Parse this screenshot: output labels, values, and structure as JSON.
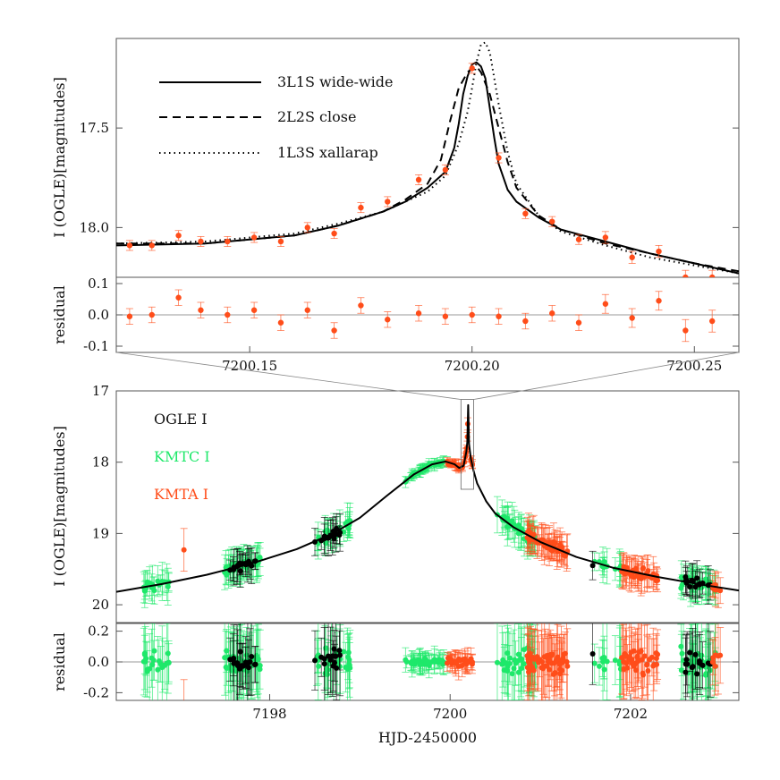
{
  "chart_data": [
    {
      "type": "line",
      "panel": "top-zoom",
      "ylabel": "I (OGLE)[magnitudes]",
      "xlim": [
        7200.12,
        7200.26
      ],
      "ylim": [
        18.25,
        17.05
      ],
      "yticks": [
        17.5,
        18.0
      ],
      "ytick_labels": [
        "17.5",
        "18.0"
      ],
      "legend_position": "top-left",
      "series": [
        {
          "name": "3L1S wide-wide",
          "style": "solid",
          "x": [
            7200.12,
            7200.14,
            7200.16,
            7200.17,
            7200.18,
            7200.185,
            7200.19,
            7200.194,
            7200.196,
            7200.197,
            7200.198,
            7200.199,
            7200.2,
            7200.201,
            7200.202,
            7200.203,
            7200.204,
            7200.205,
            7200.206,
            7200.208,
            7200.21,
            7200.215,
            7200.22,
            7200.23,
            7200.24,
            7200.25,
            7200.26
          ],
          "y": [
            18.09,
            18.08,
            18.04,
            17.99,
            17.92,
            17.87,
            17.8,
            17.72,
            17.6,
            17.48,
            17.33,
            17.24,
            17.18,
            17.17,
            17.19,
            17.25,
            17.4,
            17.55,
            17.68,
            17.81,
            17.87,
            17.95,
            18.01,
            18.07,
            18.13,
            18.18,
            18.23
          ]
        },
        {
          "name": "2L2S close",
          "style": "dashed",
          "x": [
            7200.12,
            7200.14,
            7200.16,
            7200.17,
            7200.18,
            7200.185,
            7200.19,
            7200.193,
            7200.195,
            7200.197,
            7200.199,
            7200.2,
            7200.201,
            7200.202,
            7200.204,
            7200.206,
            7200.208,
            7200.21,
            7200.215,
            7200.22,
            7200.23,
            7200.24,
            7200.25,
            7200.26
          ],
          "y": [
            18.08,
            18.08,
            18.04,
            17.99,
            17.92,
            17.86,
            17.78,
            17.66,
            17.47,
            17.3,
            17.22,
            17.2,
            17.19,
            17.22,
            17.33,
            17.5,
            17.67,
            17.8,
            17.94,
            18.01,
            18.08,
            18.13,
            18.18,
            18.22
          ]
        },
        {
          "name": "1L3S xallarap",
          "style": "dotted",
          "x": [
            7200.12,
            7200.14,
            7200.16,
            7200.17,
            7200.18,
            7200.19,
            7200.194,
            7200.197,
            7200.199,
            7200.2,
            7200.201,
            7200.202,
            7200.203,
            7200.204,
            7200.206,
            7200.208,
            7200.21,
            7200.215,
            7200.22,
            7200.23,
            7200.24,
            7200.25,
            7200.26
          ],
          "y": [
            18.08,
            18.07,
            18.03,
            17.98,
            17.92,
            17.82,
            17.74,
            17.58,
            17.42,
            17.3,
            17.17,
            17.08,
            17.07,
            17.12,
            17.38,
            17.62,
            17.78,
            17.94,
            18.02,
            18.09,
            18.15,
            18.19,
            18.23
          ]
        }
      ],
      "points": {
        "name": "KMTA I",
        "color": "#ff4d1a",
        "x": [
          7200.123,
          7200.128,
          7200.134,
          7200.139,
          7200.145,
          7200.151,
          7200.157,
          7200.163,
          7200.169,
          7200.175,
          7200.181,
          7200.188,
          7200.194,
          7200.2,
          7200.206,
          7200.212,
          7200.218,
          7200.224,
          7200.23,
          7200.236,
          7200.242,
          7200.248,
          7200.254
        ],
        "y": [
          18.09,
          18.09,
          18.04,
          18.07,
          18.07,
          18.05,
          18.07,
          18.0,
          18.03,
          17.9,
          17.87,
          17.76,
          17.71,
          17.2,
          17.65,
          17.93,
          17.97,
          18.06,
          18.05,
          18.15,
          18.12,
          18.25,
          18.25
        ],
        "err": [
          0.025,
          0.025,
          0.025,
          0.025,
          0.025,
          0.025,
          0.025,
          0.025,
          0.025,
          0.025,
          0.025,
          0.025,
          0.025,
          0.025,
          0.025,
          0.025,
          0.025,
          0.025,
          0.03,
          0.03,
          0.03,
          0.035,
          0.035
        ]
      }
    },
    {
      "type": "scatter",
      "panel": "top-zoom-residual",
      "ylabel": "residual",
      "xlim": [
        7200.12,
        7200.26
      ],
      "ylim": [
        -0.12,
        0.12
      ],
      "yticks": [
        0.1,
        0.0,
        -0.1
      ],
      "ytick_labels": [
        "0.1",
        "0.0",
        "-0.1"
      ],
      "xticks": [
        7200.15,
        7200.2,
        7200.25
      ],
      "xtick_labels": [
        "7200.15",
        "7200.20",
        "7200.25"
      ],
      "points": {
        "name": "KMTA I",
        "color": "#ff4d1a",
        "x": [
          7200.123,
          7200.128,
          7200.134,
          7200.139,
          7200.145,
          7200.151,
          7200.157,
          7200.163,
          7200.169,
          7200.175,
          7200.181,
          7200.188,
          7200.194,
          7200.2,
          7200.206,
          7200.212,
          7200.218,
          7200.224,
          7200.23,
          7200.236,
          7200.242,
          7200.248,
          7200.254
        ],
        "y": [
          -0.005,
          0.0,
          0.055,
          0.015,
          0.0,
          0.015,
          -0.025,
          0.015,
          -0.05,
          0.03,
          -0.015,
          0.005,
          -0.005,
          0.0,
          -0.005,
          -0.02,
          0.005,
          -0.025,
          0.035,
          -0.01,
          0.045,
          -0.05,
          -0.02
        ],
        "err": [
          0.025,
          0.025,
          0.025,
          0.025,
          0.025,
          0.025,
          0.025,
          0.025,
          0.025,
          0.025,
          0.025,
          0.025,
          0.025,
          0.025,
          0.025,
          0.025,
          0.025,
          0.025,
          0.03,
          0.03,
          0.03,
          0.035,
          0.035
        ]
      }
    },
    {
      "type": "line",
      "panel": "bottom-full",
      "ylabel": "I (OGLE)[magnitudes]",
      "xlim": [
        7196.3,
        7203.2
      ],
      "ylim": [
        20.25,
        17.0
      ],
      "yticks": [
        17,
        18,
        19,
        20
      ],
      "ytick_labels": [
        "17",
        "18",
        "19",
        "20"
      ],
      "zoom_box": {
        "x": [
          7200.12,
          7200.26
        ],
        "y": [
          17.12,
          18.38
        ]
      },
      "legend_position": "top-left",
      "legend": [
        {
          "name": "OGLE I",
          "color": "#000000"
        },
        {
          "name": "KMTC I",
          "color": "#1ee86a"
        },
        {
          "name": "KMTA I",
          "color": "#ff4d1a"
        }
      ],
      "model": {
        "name": "3L1S wide-wide",
        "x": [
          7196.3,
          7196.8,
          7197.3,
          7197.8,
          7198.3,
          7198.7,
          7199.0,
          7199.3,
          7199.6,
          7199.8,
          7199.95,
          7200.05,
          7200.1,
          7200.15,
          7200.18,
          7200.19,
          7200.2,
          7200.21,
          7200.23,
          7200.26,
          7200.3,
          7200.4,
          7200.5,
          7200.7,
          7201.0,
          7201.4,
          7201.8,
          7202.3,
          7202.8,
          7203.2
        ],
        "y": [
          19.82,
          19.71,
          19.58,
          19.42,
          19.22,
          19.0,
          18.78,
          18.47,
          18.17,
          18.03,
          17.99,
          18.03,
          18.08,
          18.05,
          17.85,
          17.72,
          17.2,
          17.75,
          17.95,
          18.12,
          18.3,
          18.55,
          18.72,
          18.91,
          19.12,
          19.33,
          19.48,
          19.61,
          19.72,
          19.8
        ]
      },
      "data_groups": [
        {
          "name": "KMTC I",
          "x_range": [
            7196.6,
            7196.9
          ],
          "mag_center": 19.8,
          "count": 22
        },
        {
          "name": "KMTA I",
          "x": 7197.05,
          "y": 19.23,
          "err": 0.3
        },
        {
          "name": "KMTC I",
          "x_range": [
            7197.5,
            7197.9
          ],
          "mag_center": 19.5,
          "count": 45
        },
        {
          "name": "OGLE I",
          "x_range": [
            7197.55,
            7197.85
          ],
          "mag_center": 19.55,
          "count": 18
        },
        {
          "name": "KMTC I",
          "x_range": [
            7198.5,
            7198.9
          ],
          "mag_center": 19.22,
          "count": 30
        },
        {
          "name": "OGLE I",
          "x_range": [
            7198.5,
            7198.8
          ],
          "mag_center": 19.2,
          "count": 14
        },
        {
          "name": "KMTC I",
          "x_range": [
            7199.5,
            7199.98
          ],
          "mag_center": 18.2,
          "count": 45
        },
        {
          "name": "KMTA I",
          "x_range": [
            7199.95,
            7200.25
          ],
          "mag_center": 18.0,
          "count": 30
        },
        {
          "name": "KMTC I",
          "x_range": [
            7200.5,
            7200.95
          ],
          "mag_center": 18.85,
          "count": 45
        },
        {
          "name": "KMTA I",
          "x_range": [
            7200.85,
            7201.3
          ],
          "mag_center": 19.1,
          "count": 55
        },
        {
          "name": "KMTC I",
          "x_range": [
            7201.6,
            7201.9
          ],
          "mag_center": 19.5,
          "count": 14
        },
        {
          "name": "OGLE I",
          "x": 7201.58,
          "y": 19.45,
          "err": 0.2
        },
        {
          "name": "KMTA I",
          "x_range": [
            7201.9,
            7202.3
          ],
          "mag_center": 19.55,
          "count": 40
        },
        {
          "name": "KMTC I",
          "x_range": [
            7202.55,
            7202.95
          ],
          "mag_center": 19.7,
          "count": 40
        },
        {
          "name": "OGLE I",
          "x_range": [
            7202.6,
            7202.9
          ],
          "mag_center": 19.72,
          "count": 14
        },
        {
          "name": "KMTA I",
          "x_range": [
            7202.9,
            7203.0
          ],
          "mag_center": 19.6,
          "count": 6
        }
      ]
    },
    {
      "type": "scatter",
      "panel": "bottom-residual",
      "ylabel": "residual",
      "xlabel": "HJD-2450000",
      "xlim": [
        7196.3,
        7203.2
      ],
      "ylim": [
        -0.25,
        0.25
      ],
      "yticks": [
        0.2,
        0.0,
        -0.2
      ],
      "ytick_labels": [
        "0.2",
        "0.0",
        "-0.2"
      ],
      "xticks": [
        7198,
        7200,
        7202
      ],
      "xtick_labels": [
        "7198",
        "7200",
        "7202"
      ]
    }
  ]
}
